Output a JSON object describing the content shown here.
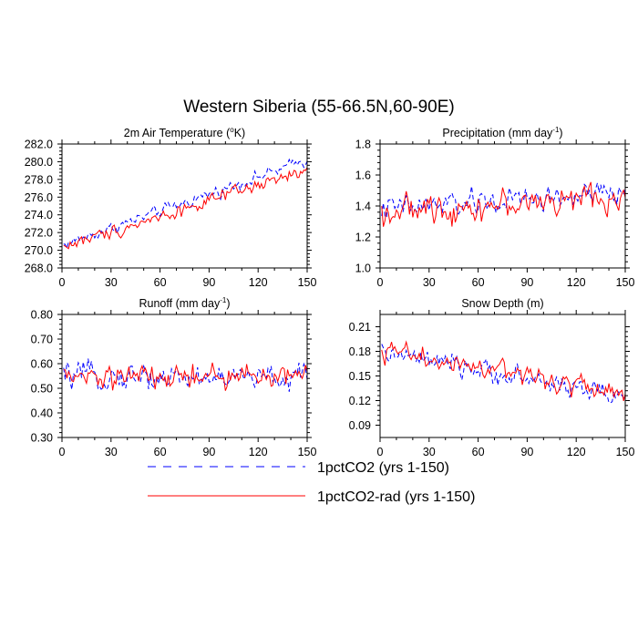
{
  "figure": {
    "title": "Western Siberia (55-66.5N,60-90E)"
  },
  "legend": [
    {
      "label": "1pctCO2 (yrs 1-150)",
      "color": "#0000ff",
      "dash": "dashed"
    },
    {
      "label": "1pctCO2-rad (yrs 1-150)",
      "color": "#ff0000",
      "dash": "solid"
    }
  ],
  "chart_data": [
    {
      "type": "line",
      "title": "2m Air Temperature (°K)",
      "title_main": "2m Air Temperature (",
      "title_sup": "o",
      "title_tail": "K)",
      "xlim": [
        0,
        150
      ],
      "ylim": [
        268,
        282
      ],
      "xticks": [
        "0",
        "30",
        "60",
        "90",
        "120",
        "150"
      ],
      "yticks": [
        "268.0",
        "270.0",
        "272.0",
        "274.0",
        "276.0",
        "278.0",
        "280.0",
        "282.0"
      ],
      "x": [
        1,
        150
      ],
      "series": [
        {
          "name": "1pctCO2 (yrs 1-150)",
          "color": "#0000ff",
          "dash": "dashed",
          "start": 270.6,
          "end": 280.2,
          "noise": 0.9
        },
        {
          "name": "1pctCO2-rad (yrs 1-150)",
          "color": "#ff0000",
          "dash": "solid",
          "start": 270.4,
          "end": 279.0,
          "noise": 1.0
        }
      ]
    },
    {
      "type": "line",
      "title": "Precipitation (mm day-1)",
      "title_main": "Precipitation (mm day",
      "title_sup": "-1",
      "title_tail": ")",
      "xlim": [
        0,
        150
      ],
      "ylim": [
        1.0,
        1.8
      ],
      "xticks": [
        "0",
        "30",
        "60",
        "90",
        "120",
        "150"
      ],
      "yticks": [
        "1.0",
        "1.2",
        "1.4",
        "1.6",
        "1.8"
      ],
      "x": [
        1,
        150
      ],
      "series": [
        {
          "name": "1pctCO2 (yrs 1-150)",
          "color": "#0000ff",
          "dash": "dashed",
          "start": 1.38,
          "end": 1.48,
          "noise": 0.11
        },
        {
          "name": "1pctCO2-rad (yrs 1-150)",
          "color": "#ff0000",
          "dash": "solid",
          "start": 1.36,
          "end": 1.46,
          "noise": 0.12
        }
      ]
    },
    {
      "type": "line",
      "title": "Runoff (mm day-1)",
      "title_main": "Runoff (mm day",
      "title_sup": "-1",
      "title_tail": ")",
      "xlim": [
        0,
        150
      ],
      "ylim": [
        0.3,
        0.8
      ],
      "xticks": [
        "0",
        "30",
        "60",
        "90",
        "120",
        "150"
      ],
      "yticks": [
        "0.30",
        "0.40",
        "0.50",
        "0.60",
        "0.70",
        "0.80"
      ],
      "x": [
        1,
        150
      ],
      "series": [
        {
          "name": "1pctCO2 (yrs 1-150)",
          "color": "#0000ff",
          "dash": "dashed",
          "start": 0.55,
          "end": 0.54,
          "noise": 0.07
        },
        {
          "name": "1pctCO2-rad (yrs 1-150)",
          "color": "#ff0000",
          "dash": "solid",
          "start": 0.54,
          "end": 0.55,
          "noise": 0.07
        }
      ]
    },
    {
      "type": "line",
      "title": "Snow Depth (m)",
      "title_main": "Snow Depth (m)",
      "title_sup": "",
      "title_tail": "",
      "xlim": [
        0,
        150
      ],
      "ylim": [
        0.075,
        0.225
      ],
      "xticks": [
        "0",
        "30",
        "60",
        "90",
        "120",
        "150"
      ],
      "yticks": [
        "0.09",
        "0.12",
        "0.15",
        "0.18",
        "0.21"
      ],
      "ytick_values": [
        0.09,
        0.12,
        0.15,
        0.18,
        0.21
      ],
      "x": [
        1,
        150
      ],
      "series": [
        {
          "name": "1pctCO2 (yrs 1-150)",
          "color": "#0000ff",
          "dash": "dashed",
          "start": 0.178,
          "end": 0.125,
          "noise": 0.017
        },
        {
          "name": "1pctCO2-rad (yrs 1-150)",
          "color": "#ff0000",
          "dash": "solid",
          "start": 0.182,
          "end": 0.127,
          "noise": 0.018
        }
      ]
    }
  ]
}
